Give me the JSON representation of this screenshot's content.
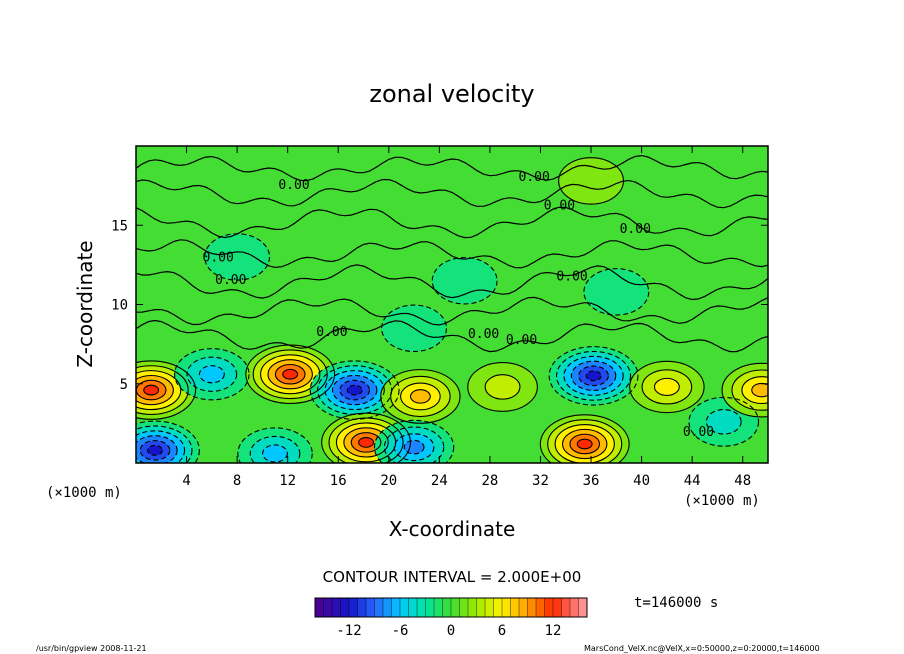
{
  "chart_data": {
    "type": "heatmap",
    "title": "zonal velocity",
    "xlabel": "X-coordinate",
    "ylabel": "Z-coordinate",
    "x_unit": "(×1000 m)",
    "y_unit": "(×1000 m)",
    "xlim": [
      0,
      50
    ],
    "ylim": [
      0,
      20
    ],
    "x_ticks": [
      4,
      8,
      12,
      16,
      20,
      24,
      28,
      32,
      36,
      40,
      44,
      48
    ],
    "y_ticks": [
      5,
      10,
      15
    ],
    "contour_interval_label": "CONTOUR INTERVAL = 2.000E+00",
    "zero_contour_label": "0.00",
    "time_label": "t=146000 s",
    "colorbar": {
      "ticks": [
        -12,
        -6,
        0,
        6,
        12
      ],
      "range": [
        -16,
        16
      ]
    },
    "colors": {
      "min": "#4b0082",
      "low": "#0000ff",
      "cyan": "#00c8ff",
      "zero": "#33dd33",
      "mid": "#c8f000",
      "warm": "#ffd000",
      "high": "#ff3300",
      "max": "#ff9999"
    },
    "features": [
      {
        "x": 1.2,
        "z": 4.6,
        "value": 12
      },
      {
        "x": 1.5,
        "z": 0.8,
        "value": -12
      },
      {
        "x": 6.0,
        "z": 5.6,
        "value": -6
      },
      {
        "x": 11.0,
        "z": 0.6,
        "value": -6
      },
      {
        "x": 12.2,
        "z": 5.6,
        "value": 12
      },
      {
        "x": 17.3,
        "z": 4.6,
        "value": -12
      },
      {
        "x": 18.2,
        "z": 1.3,
        "value": 12
      },
      {
        "x": 22.5,
        "z": 4.2,
        "value": 8
      },
      {
        "x": 22.0,
        "z": 1.0,
        "value": -8
      },
      {
        "x": 29.0,
        "z": 4.8,
        "value": 4
      },
      {
        "x": 35.5,
        "z": 1.2,
        "value": 12
      },
      {
        "x": 36.2,
        "z": 5.5,
        "value": -12
      },
      {
        "x": 42.0,
        "z": 4.8,
        "value": 6
      },
      {
        "x": 46.5,
        "z": 2.6,
        "value": -4
      },
      {
        "x": 49.5,
        "z": 4.6,
        "value": 8
      },
      {
        "x": 22.0,
        "z": 8.5,
        "value": -2
      },
      {
        "x": 26.0,
        "z": 11.5,
        "value": -2
      },
      {
        "x": 8.0,
        "z": 13.0,
        "value": -2
      },
      {
        "x": 36.0,
        "z": 17.8,
        "value": 2
      },
      {
        "x": 38.0,
        "z": 10.8,
        "value": -2
      }
    ]
  },
  "footer": {
    "left": "/usr/bin/gpview   2008-11-21",
    "right": "MarsCond_VelX.nc@VelX,x=0:50000,z=0:20000,t=146000"
  }
}
